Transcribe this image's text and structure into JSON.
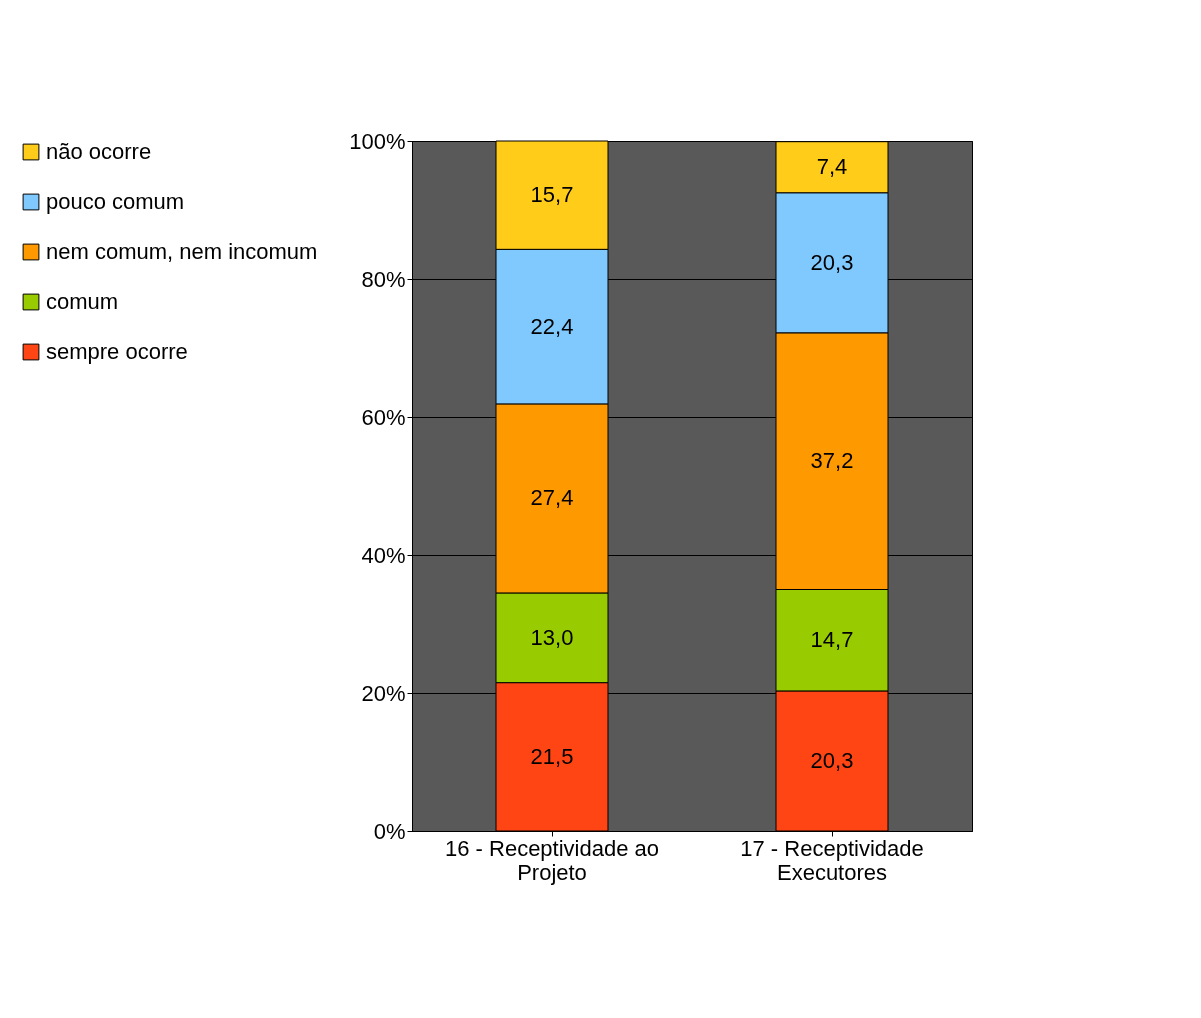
{
  "chart_data": {
    "type": "bar",
    "stacked": true,
    "categories": [
      "16 - Receptividade ao Projeto",
      "17 - Receptividade Executores"
    ],
    "series": [
      {
        "name": "sempre ocorre",
        "color": "#ff4513",
        "values": [
          21.5,
          20.3
        ],
        "value_labels": [
          "21,5",
          "20,3"
        ]
      },
      {
        "name": "comum",
        "color": "#99cc00",
        "values": [
          13.0,
          14.7
        ],
        "value_labels": [
          "13,0",
          "14,7"
        ]
      },
      {
        "name": "nem comum, nem incomum",
        "color": "#ff9900",
        "values": [
          27.4,
          37.2
        ],
        "value_labels": [
          "27,4",
          "37,2"
        ]
      },
      {
        "name": "pouco comum",
        "color": "#7fc9ff",
        "values": [
          22.4,
          20.3
        ],
        "value_labels": [
          "22,4",
          "20,3"
        ]
      },
      {
        "name": "não ocorre",
        "color": "#ffcc1a",
        "values": [
          15.7,
          7.4
        ],
        "value_labels": [
          "15,7",
          "7,4"
        ]
      }
    ],
    "ylim": [
      0,
      100
    ],
    "yticks": [
      {
        "value": 0,
        "label": "0%"
      },
      {
        "value": 20,
        "label": "20%"
      },
      {
        "value": 40,
        "label": "40%"
      },
      {
        "value": 60,
        "label": "60%"
      },
      {
        "value": 80,
        "label": "80%"
      },
      {
        "value": 100,
        "label": "100%"
      }
    ],
    "grid": "y",
    "legend": "left"
  }
}
